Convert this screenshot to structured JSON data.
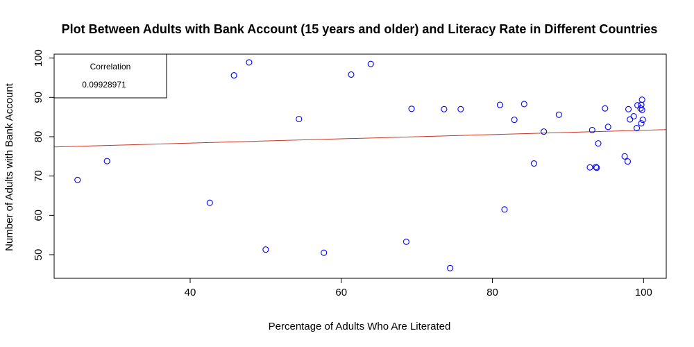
{
  "chart_data": {
    "type": "scatter",
    "title": "Plot Between Adults with Bank Account (15 years and older) and Literacy Rate in Different Countries",
    "xlabel": "Percentage of Adults Who Are Literated",
    "ylabel": "Number of Adults with Bank Account",
    "xlim": [
      22,
      103
    ],
    "ylim": [
      44,
      101
    ],
    "x_ticks": [
      40,
      60,
      80,
      100
    ],
    "y_ticks": [
      50,
      60,
      70,
      80,
      90,
      100
    ],
    "grid": false,
    "point_color": "#0000ff",
    "line_color": "#cc3322",
    "points": [
      {
        "x": 25.1,
        "y": 69.0
      },
      {
        "x": 29.0,
        "y": 73.8
      },
      {
        "x": 42.6,
        "y": 63.2
      },
      {
        "x": 45.8,
        "y": 95.6
      },
      {
        "x": 47.8,
        "y": 98.9
      },
      {
        "x": 50.0,
        "y": 51.3
      },
      {
        "x": 54.4,
        "y": 84.5
      },
      {
        "x": 57.7,
        "y": 50.5
      },
      {
        "x": 61.3,
        "y": 95.8
      },
      {
        "x": 63.9,
        "y": 98.5
      },
      {
        "x": 68.6,
        "y": 53.3
      },
      {
        "x": 69.3,
        "y": 87.1
      },
      {
        "x": 73.6,
        "y": 87.0
      },
      {
        "x": 74.4,
        "y": 46.6
      },
      {
        "x": 75.8,
        "y": 87.0
      },
      {
        "x": 81.0,
        "y": 88.1
      },
      {
        "x": 81.6,
        "y": 61.5
      },
      {
        "x": 82.9,
        "y": 84.3
      },
      {
        "x": 84.2,
        "y": 88.3
      },
      {
        "x": 85.5,
        "y": 73.2
      },
      {
        "x": 86.8,
        "y": 81.3
      },
      {
        "x": 88.8,
        "y": 85.6
      },
      {
        "x": 92.9,
        "y": 72.2
      },
      {
        "x": 93.2,
        "y": 81.7
      },
      {
        "x": 93.7,
        "y": 72.3
      },
      {
        "x": 93.8,
        "y": 72.1
      },
      {
        "x": 94.0,
        "y": 78.3
      },
      {
        "x": 94.9,
        "y": 87.2
      },
      {
        "x": 95.3,
        "y": 82.5
      },
      {
        "x": 97.5,
        "y": 75.0
      },
      {
        "x": 97.9,
        "y": 73.7
      },
      {
        "x": 98.0,
        "y": 87.0
      },
      {
        "x": 98.2,
        "y": 84.4
      },
      {
        "x": 98.7,
        "y": 85.2
      },
      {
        "x": 99.1,
        "y": 82.2
      },
      {
        "x": 99.2,
        "y": 88.0
      },
      {
        "x": 99.6,
        "y": 87.2
      },
      {
        "x": 99.7,
        "y": 88.1
      },
      {
        "x": 99.7,
        "y": 83.4
      },
      {
        "x": 99.8,
        "y": 89.4
      },
      {
        "x": 99.8,
        "y": 86.8
      },
      {
        "x": 99.9,
        "y": 84.3
      }
    ],
    "regression_line": {
      "x": [
        22,
        103
      ],
      "y": [
        77.4,
        81.8
      ]
    },
    "legend": {
      "placement": "top-left",
      "title": "Correlation",
      "value": "0.09928971"
    }
  }
}
